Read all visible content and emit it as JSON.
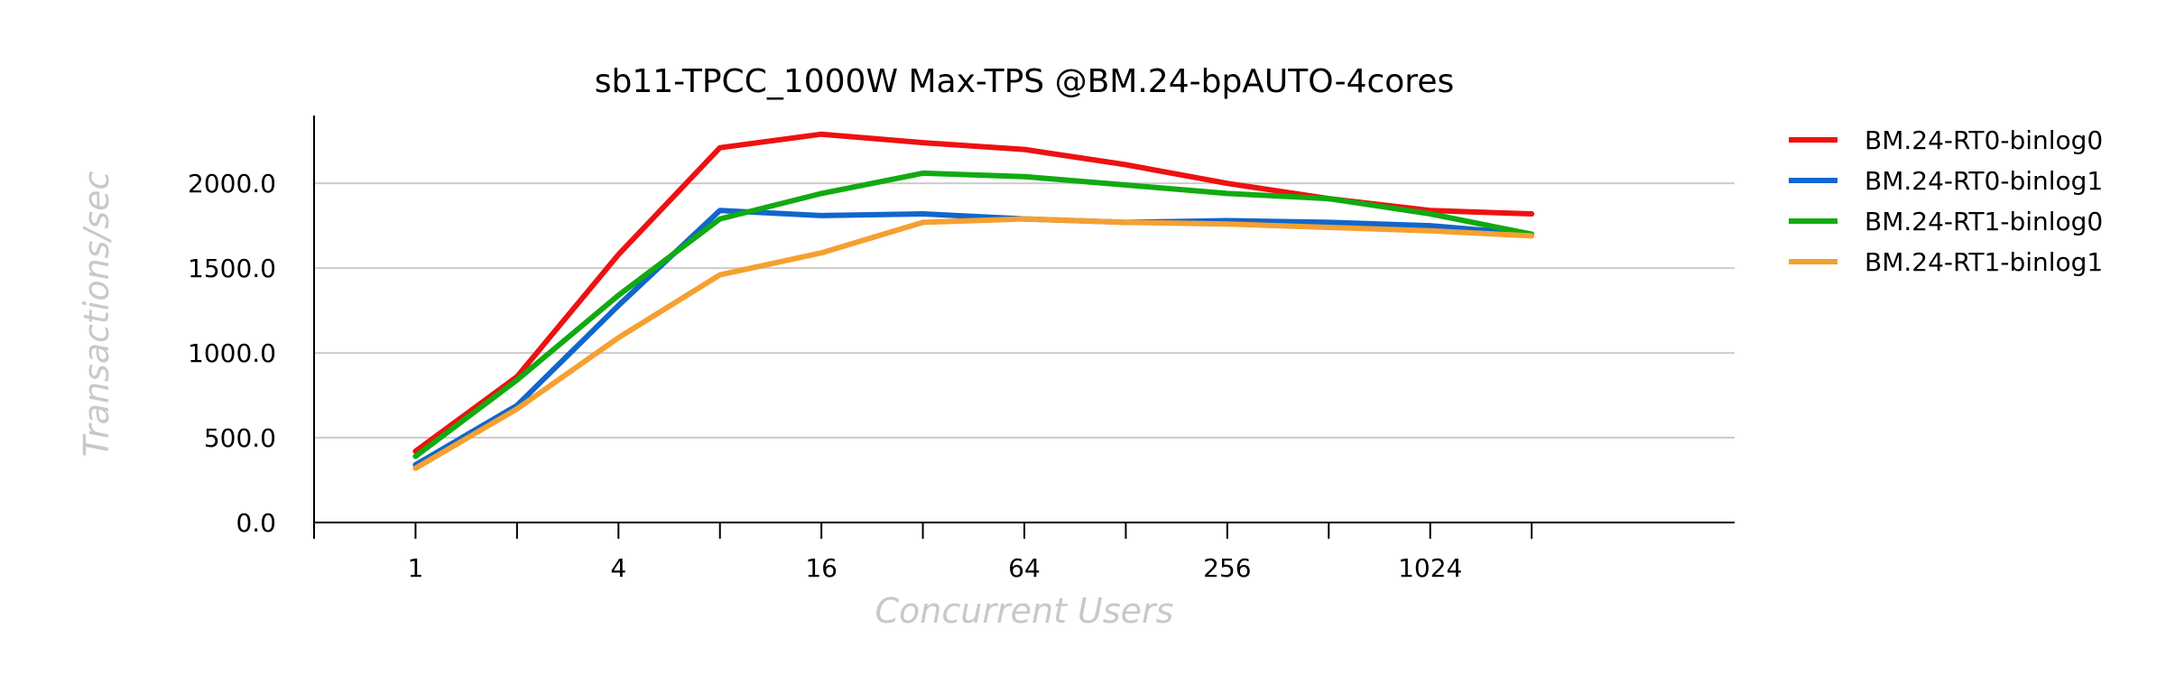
{
  "chart_data": {
    "type": "line",
    "title": "sb11-TPCC_1000W Max-TPS @BM.24-bpAUTO-4cores",
    "xlabel": "Concurrent Users",
    "ylabel": "Transactions/sec",
    "x_scale": "log2",
    "x": [
      1,
      2,
      4,
      8,
      16,
      32,
      64,
      128,
      256,
      512,
      1024,
      2048
    ],
    "x_tick_labels": [
      "1",
      "4",
      "16",
      "64",
      "256",
      "1024"
    ],
    "x_tick_values": [
      1,
      4,
      16,
      64,
      256,
      1024
    ],
    "xlim": [
      0.5,
      8192
    ],
    "y_tick_labels": [
      "0.0",
      "500.0",
      "1000.0",
      "1500.0",
      "2000.0"
    ],
    "y_tick_values": [
      0,
      500,
      1000,
      1500,
      2000
    ],
    "ylim": [
      0,
      2400
    ],
    "grid": "horizontal",
    "legend_position": "right",
    "series": [
      {
        "name": "BM.24-RT0-binlog0",
        "color": "#ee1111",
        "values": [
          420,
          860,
          1580,
          2210,
          2290,
          2240,
          2200,
          2110,
          2000,
          1910,
          1840,
          1820
        ]
      },
      {
        "name": "BM.24-RT0-binlog1",
        "color": "#1166cc",
        "values": [
          340,
          690,
          1280,
          1840,
          1810,
          1820,
          1790,
          1770,
          1780,
          1770,
          1750,
          1700
        ]
      },
      {
        "name": "BM.24-RT1-binlog0",
        "color": "#11aa11",
        "values": [
          390,
          840,
          1340,
          1790,
          1940,
          2060,
          2040,
          1990,
          1940,
          1910,
          1820,
          1700
        ]
      },
      {
        "name": "BM.24-RT1-binlog1",
        "color": "#f5a030",
        "values": [
          320,
          670,
          1090,
          1460,
          1590,
          1770,
          1790,
          1770,
          1760,
          1740,
          1720,
          1690
        ]
      }
    ]
  }
}
